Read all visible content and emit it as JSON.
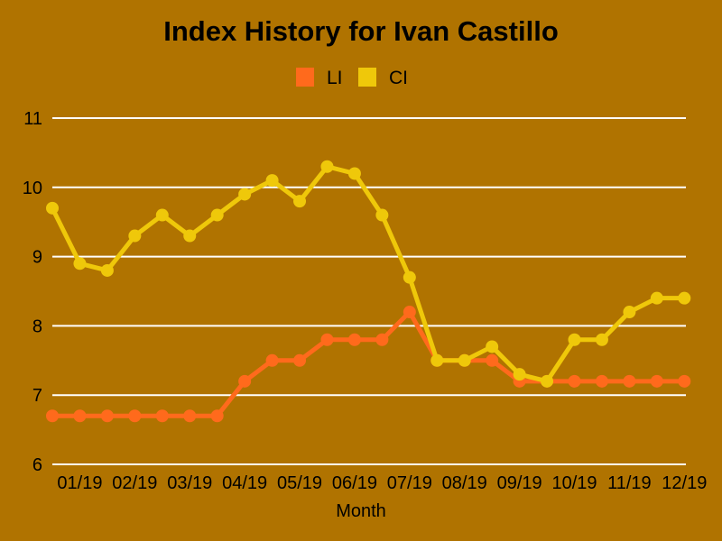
{
  "chart_data": {
    "type": "line",
    "title": "Index History for Ivan Castillo",
    "xlabel": "Month",
    "ylabel": "",
    "ylim": [
      6,
      11
    ],
    "y_ticks": [
      6,
      7,
      8,
      9,
      10,
      11
    ],
    "x_tick_labels": [
      "01/19",
      "02/19",
      "03/19",
      "04/19",
      "05/19",
      "06/19",
      "07/19",
      "08/19",
      "09/19",
      "10/19",
      "11/19",
      "12/19"
    ],
    "points_per_month": 2,
    "grid": true,
    "legend_position": "top-center",
    "colors": {
      "background": "#B07300",
      "gridline": "#FFFFFF",
      "text": "#000000"
    },
    "series": [
      {
        "name": "LI",
        "color": "#FF6A1C",
        "values": [
          6.7,
          6.7,
          6.7,
          6.7,
          6.7,
          6.7,
          6.7,
          7.2,
          7.5,
          7.5,
          7.8,
          7.8,
          7.8,
          8.2,
          7.5,
          7.5,
          7.5,
          7.2,
          7.2,
          7.2,
          7.2,
          7.2,
          7.2,
          7.2
        ]
      },
      {
        "name": "CI",
        "color": "#EFC80A",
        "values": [
          9.7,
          8.9,
          8.8,
          9.3,
          9.6,
          9.3,
          9.6,
          9.9,
          10.1,
          9.8,
          10.3,
          10.2,
          9.6,
          8.7,
          7.5,
          7.5,
          7.7,
          7.3,
          7.2,
          7.8,
          7.8,
          8.2,
          8.4,
          8.4
        ]
      }
    ]
  }
}
